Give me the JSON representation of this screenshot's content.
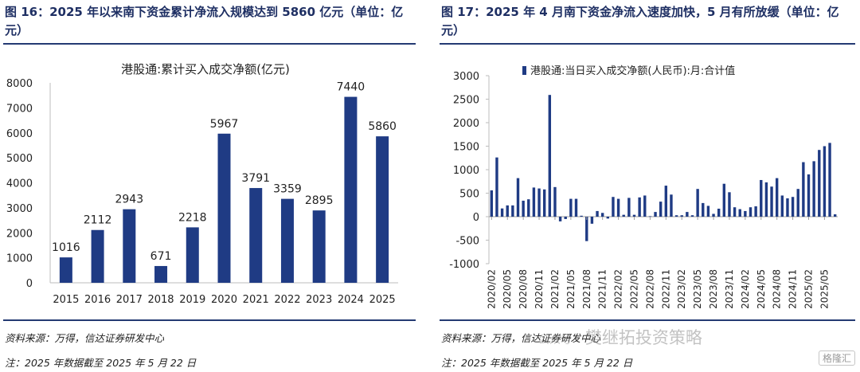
{
  "figures": [
    {
      "title": "图 16：2025 年以来南下资金累计净流入规模达到 5860 亿元（单位：亿元）",
      "source": "资料来源：万得，信达证券研发中心",
      "footnote": "注：2025 年数据截至 2025 年 5 月 22 日"
    },
    {
      "title": "图 17：2025 年 4 月南下资金净流入速度加快，5 月有所放缓（单位：亿元）",
      "source": "资料来源：万得，信达证券研发中心",
      "footnote": "注：2025 年数据截至 2025 年 5 月 22 日"
    }
  ],
  "watermark": {
    "sub": "公众号 ·",
    "main": "樊继拓投资策略"
  },
  "logo_text": "格隆汇",
  "chart_data": [
    {
      "type": "bar",
      "title": "港股通:累计买入成交净额(亿元)",
      "categories": [
        "2015",
        "2016",
        "2017",
        "2018",
        "2019",
        "2020",
        "2021",
        "2022",
        "2023",
        "2024",
        "2025"
      ],
      "values": [
        1016,
        2112,
        2943,
        671,
        2218,
        5967,
        3791,
        3359,
        2895,
        7440,
        5860
      ],
      "ylim": [
        0,
        8000
      ],
      "yticks": [
        0,
        1000,
        2000,
        3000,
        4000,
        5000,
        6000,
        7000,
        8000
      ],
      "grid": false,
      "bar_color": "#1f3b84",
      "data_labels": true
    },
    {
      "type": "bar",
      "series": [
        {
          "name": "港股通:当日买入成交净额(人民币):月:合计值",
          "values": [
            560,
            1260,
            175,
            240,
            240,
            820,
            340,
            370,
            620,
            600,
            580,
            2590,
            630,
            -100,
            -50,
            380,
            380,
            20,
            -520,
            -150,
            120,
            80,
            -40,
            420,
            380,
            40,
            400,
            40,
            410,
            450,
            10,
            100,
            320,
            660,
            470,
            30,
            30,
            100,
            30,
            590,
            290,
            230,
            60,
            170,
            700,
            520,
            200,
            160,
            120,
            200,
            220,
            780,
            730,
            640,
            820,
            450,
            390,
            420,
            590,
            1160,
            900,
            1180,
            1420,
            1500,
            1570,
            50
          ]
        }
      ],
      "tick_labels": [
        "2020/02",
        "2020/05",
        "2020/08",
        "2020/11",
        "2021/02",
        "2021/05",
        "2021/08",
        "2021/11",
        "2022/02",
        "2022/05",
        "2022/08",
        "2022/11",
        "2023/02",
        "2023/05",
        "2023/08",
        "2023/11",
        "2024/02",
        "2024/05",
        "2024/08",
        "2024/11",
        "2025/02",
        "2025/05"
      ],
      "ylim": [
        -1000,
        3000
      ],
      "yticks": [
        -1000,
        -500,
        0,
        500,
        1000,
        1500,
        2000,
        2500,
        3000
      ],
      "grid": false,
      "legend_position": "top",
      "bar_color": "#1f3b84"
    }
  ]
}
